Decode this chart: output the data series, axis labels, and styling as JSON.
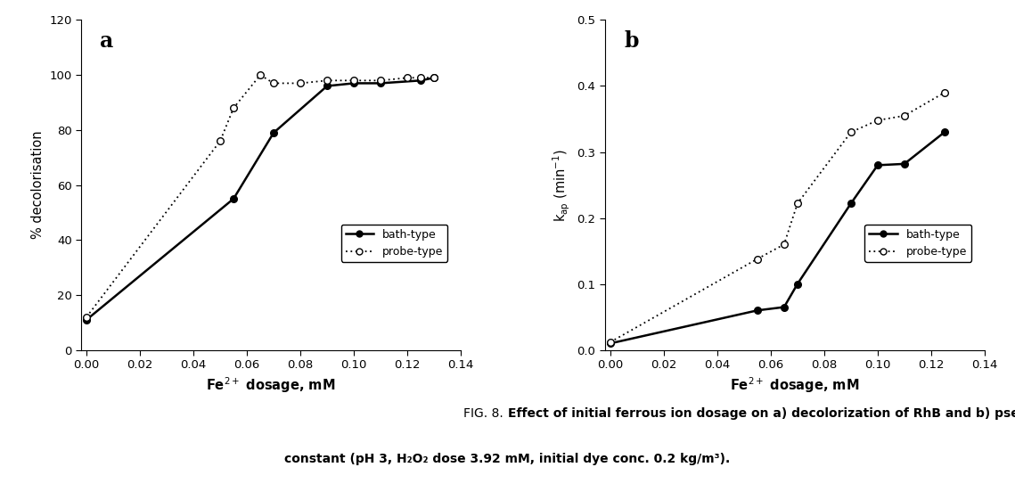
{
  "panel_a": {
    "bath_x": [
      0.0,
      0.055,
      0.07,
      0.09,
      0.1,
      0.11,
      0.125,
      0.13
    ],
    "bath_y": [
      11,
      55,
      79,
      96,
      97,
      97,
      98,
      99
    ],
    "probe_x": [
      0.0,
      0.05,
      0.055,
      0.065,
      0.07,
      0.08,
      0.09,
      0.1,
      0.11,
      0.12,
      0.125,
      0.13
    ],
    "probe_y": [
      12,
      76,
      88,
      100,
      97,
      97,
      98,
      98,
      98,
      99,
      99,
      99
    ],
    "ylabel": "% decolorisation",
    "xlabel": "Fe$^{2+}$ dosage, mM",
    "ylim": [
      0,
      120
    ],
    "xlim": [
      -0.002,
      0.14
    ],
    "yticks": [
      0,
      20,
      40,
      60,
      80,
      100,
      120
    ],
    "xticks": [
      0.0,
      0.02,
      0.04,
      0.06,
      0.08,
      0.1,
      0.12,
      0.14
    ],
    "label": "a"
  },
  "panel_b": {
    "bath_x": [
      0.0,
      0.055,
      0.065,
      0.07,
      0.09,
      0.1,
      0.11,
      0.125
    ],
    "bath_y": [
      0.01,
      0.06,
      0.065,
      0.1,
      0.222,
      0.28,
      0.282,
      0.33
    ],
    "probe_x": [
      0.0,
      0.055,
      0.065,
      0.07,
      0.09,
      0.1,
      0.11,
      0.125
    ],
    "probe_y": [
      0.012,
      0.138,
      0.16,
      0.222,
      0.33,
      0.348,
      0.355,
      0.39
    ],
    "ylabel": "k$_\\mathregular{ap}$ (min$^{-1}$)",
    "xlabel": "Fe$^{2+}$ dosage, mM",
    "ylim": [
      0.0,
      0.5
    ],
    "xlim": [
      -0.002,
      0.14
    ],
    "yticks": [
      0.0,
      0.1,
      0.2,
      0.3,
      0.4,
      0.5
    ],
    "xticks": [
      0.0,
      0.02,
      0.04,
      0.06,
      0.08,
      0.1,
      0.12,
      0.14
    ],
    "label": "b"
  },
  "legend_bath": "bath-type",
  "legend_probe": "probe-type",
  "caption_prefix": "FIG. 8. ",
  "caption_bold1": "Effect of initial ferrous ion dosage on a) decolorization of RhB and b) pseudo-first-order degradation rate",
  "caption_bold2": "constant (pH 3, H₂O₂ dose 3.92 mM, initial dye conc. 0.2 kg/m³).",
  "line_color": "#000000",
  "bg_color": "#ffffff"
}
